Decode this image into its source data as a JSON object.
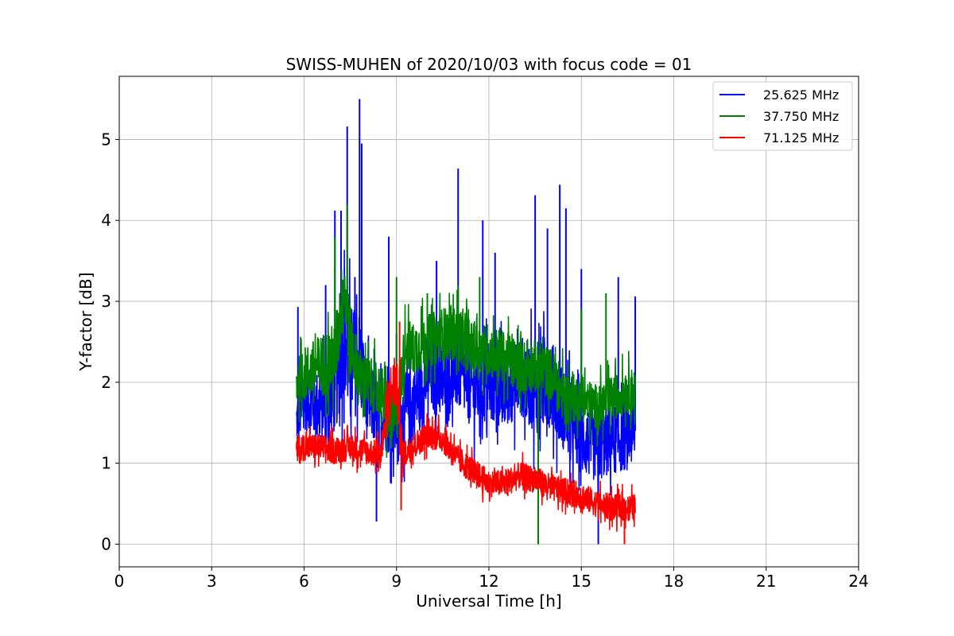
{
  "chart_data": {
    "type": "line",
    "title": "SWISS-MUHEN of 2020/10/03 with focus code = 01",
    "xlabel": "Universal Time [h]",
    "ylabel": "Y-factor [dB]",
    "xlim": [
      0,
      24
    ],
    "ylim": [
      -0.28,
      5.78
    ],
    "xticks": [
      0,
      3,
      6,
      9,
      12,
      15,
      18,
      21,
      24
    ],
    "yticks": [
      0,
      1,
      2,
      3,
      4,
      5
    ],
    "grid": true,
    "legend_position": "top-right",
    "series": [
      {
        "name": "25.625 MHz",
        "color": "#0000ff",
        "x": [
          5.75,
          6.0,
          6.5,
          7.0,
          7.3,
          7.5,
          7.8,
          8.0,
          8.5,
          9.0,
          9.5,
          10.0,
          10.5,
          11.0,
          11.5,
          12.0,
          12.5,
          13.0,
          13.5,
          14.0,
          14.5,
          15.0,
          15.5,
          16.0,
          16.5,
          16.75
        ],
        "y": [
          1.5,
          1.8,
          1.7,
          1.9,
          2.6,
          2.2,
          2.3,
          1.8,
          1.6,
          1.5,
          1.7,
          2.1,
          2.0,
          2.2,
          1.9,
          2.0,
          1.9,
          2.1,
          1.9,
          2.0,
          1.6,
          1.3,
          1.2,
          1.3,
          1.3,
          1.4
        ],
        "spread": [
          0.6,
          0.7,
          0.8,
          1.0,
          1.3,
          1.4,
          1.1,
          0.9,
          0.8,
          0.8,
          0.9,
          0.9,
          0.8,
          1.0,
          0.9,
          0.9,
          0.9,
          0.9,
          1.0,
          1.0,
          0.9,
          0.8,
          0.8,
          0.8,
          0.7,
          0.7
        ],
        "peaks": [
          [
            5.8,
            2.93
          ],
          [
            6.7,
            3.2
          ],
          [
            7.0,
            4.12
          ],
          [
            7.2,
            4.12
          ],
          [
            7.4,
            5.16
          ],
          [
            7.65,
            3.3
          ],
          [
            7.8,
            5.5
          ],
          [
            7.87,
            4.95
          ],
          [
            8.35,
            0.28
          ],
          [
            8.75,
            3.8
          ],
          [
            9.0,
            2.6
          ],
          [
            10.3,
            3.5
          ],
          [
            11.0,
            4.64
          ],
          [
            11.8,
            4.0
          ],
          [
            12.2,
            3.6
          ],
          [
            13.5,
            4.31
          ],
          [
            13.9,
            3.9
          ],
          [
            14.3,
            4.44
          ],
          [
            14.5,
            4.15
          ],
          [
            15.0,
            3.4
          ],
          [
            15.55,
            0.0
          ],
          [
            16.2,
            3.3
          ],
          [
            16.75,
            3.06
          ]
        ]
      },
      {
        "name": "37.750 MHz",
        "color": "#008000",
        "x": [
          5.75,
          6.0,
          6.5,
          7.0,
          7.3,
          7.5,
          7.8,
          8.0,
          8.5,
          8.8,
          9.0,
          9.3,
          9.5,
          10.0,
          10.5,
          11.0,
          11.5,
          12.0,
          12.5,
          13.0,
          13.5,
          14.0,
          14.5,
          15.0,
          15.5,
          16.0,
          16.5,
          16.75
        ],
        "y": [
          2.0,
          2.1,
          2.2,
          2.3,
          3.2,
          2.5,
          2.1,
          2.0,
          1.9,
          1.5,
          1.6,
          2.5,
          2.4,
          2.5,
          2.6,
          2.6,
          2.4,
          2.4,
          2.3,
          2.2,
          2.2,
          2.1,
          1.8,
          1.8,
          1.7,
          1.8,
          1.9,
          1.9
        ],
        "spread": [
          0.5,
          0.6,
          0.7,
          0.8,
          0.9,
          0.8,
          0.6,
          0.6,
          0.6,
          0.7,
          0.7,
          0.6,
          0.6,
          0.6,
          0.6,
          0.6,
          0.6,
          0.6,
          0.6,
          0.6,
          0.6,
          0.6,
          0.6,
          0.5,
          0.5,
          0.5,
          0.5,
          0.5
        ],
        "peaks": [
          [
            7.4,
            4.2
          ],
          [
            7.0,
            3.8
          ],
          [
            9.0,
            3.3
          ],
          [
            10.0,
            3.1
          ],
          [
            11.0,
            3.2
          ],
          [
            11.7,
            3.3
          ],
          [
            13.6,
            0.0
          ],
          [
            15.0,
            2.9
          ],
          [
            15.8,
            3.1
          ]
        ]
      },
      {
        "name": "71.125 MHz",
        "color": "#ff0000",
        "x": [
          5.75,
          6.0,
          6.5,
          7.0,
          7.5,
          8.0,
          8.5,
          8.8,
          9.0,
          9.2,
          9.5,
          10.0,
          10.5,
          11.0,
          11.5,
          12.0,
          12.5,
          13.0,
          13.5,
          14.0,
          14.5,
          15.0,
          15.5,
          16.0,
          16.5,
          16.75
        ],
        "y": [
          1.15,
          1.2,
          1.2,
          1.15,
          1.2,
          1.15,
          1.1,
          1.9,
          2.0,
          1.1,
          1.2,
          1.35,
          1.3,
          1.05,
          0.9,
          0.75,
          0.75,
          0.85,
          0.8,
          0.7,
          0.65,
          0.6,
          0.5,
          0.45,
          0.45,
          0.45
        ],
        "spread": [
          0.35,
          0.3,
          0.3,
          0.3,
          0.3,
          0.3,
          0.3,
          0.6,
          0.6,
          0.3,
          0.3,
          0.3,
          0.3,
          0.3,
          0.3,
          0.3,
          0.3,
          0.3,
          0.3,
          0.3,
          0.3,
          0.3,
          0.3,
          0.3,
          0.3,
          0.3
        ],
        "peaks": [
          [
            9.1,
            2.75
          ],
          [
            9.15,
            0.42
          ],
          [
            16.4,
            0.0
          ]
        ]
      }
    ]
  }
}
